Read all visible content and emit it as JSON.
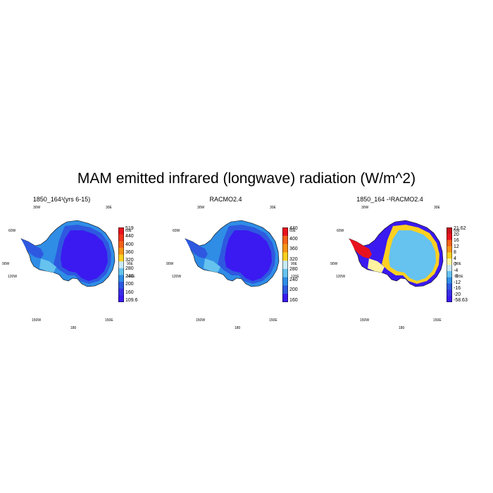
{
  "title": "MAM emitted infrared (longwave) radiation (W/m^2)",
  "panels": [
    {
      "title": "1850_164¹(yrs 6-15)",
      "lon_labels": {
        "top_left": "30W",
        "top_right": "30E",
        "left_upper": "60W",
        "right_upper": "60E",
        "left_mid": "90W",
        "right_mid": "90E",
        "left_lower": "120W",
        "right_lower": "120E",
        "bottom_left": "150W",
        "bottom_right": "150E",
        "bottom": "180"
      },
      "colorbar": {
        "labels": [
          "519",
          "440",
          "400",
          "360",
          "320",
          "280",
          "240",
          "200",
          "160",
          "109.6"
        ],
        "colors": [
          "#e8121e",
          "#f0341c",
          "#f5621a",
          "#f89318",
          "#fdd020",
          "#c8e8f5",
          "#66c2ee",
          "#2f8de6",
          "#2e58e0",
          "#3a2ee6",
          "#3a1af0"
        ]
      },
      "map_colors": {
        "interior": "#3a1af0",
        "coast": "#2e58e0",
        "edge": "#2f8de6",
        "peninsula": "#2e58e0",
        "shelf": "#66c2ee"
      }
    },
    {
      "title": "RACMO2.4",
      "lon_labels": {
        "top_left": "30W",
        "top_right": "30E",
        "left_upper": "60W",
        "right_upper": "60E",
        "left_mid": "90W",
        "right_mid": "90E",
        "left_lower": "120W",
        "right_lower": "120E",
        "bottom_left": "150W",
        "bottom_right": "150E",
        "bottom": "180"
      },
      "colorbar": {
        "labels": [
          "440",
          "400",
          "360",
          "320",
          "280",
          "240",
          "200",
          "160"
        ],
        "colors": [
          "#e8121e",
          "#f5621a",
          "#f89318",
          "#fdd020",
          "#c8e8f5",
          "#66c2ee",
          "#2f8de6",
          "#2e58e0",
          "#3a1af0"
        ]
      },
      "map_colors": {
        "interior": "#3a1af0",
        "coast": "#2e58e0",
        "edge": "#2f8de6",
        "peninsula": "#2e58e0",
        "shelf": "#66c2ee"
      }
    },
    {
      "title": "1850_164 -¹RACMO2.4",
      "lon_labels": {
        "top_left": "30W",
        "top_right": "30E",
        "left_upper": "60W",
        "right_upper": "60E",
        "left_mid": "90W",
        "right_mid": "90E",
        "left_lower": "120W",
        "right_lower": "120E",
        "bottom_left": "150W",
        "bottom_right": "150E",
        "bottom": "180"
      },
      "colorbar": {
        "labels": [
          "21.62",
          "20",
          "16",
          "12",
          "8",
          "4",
          "0",
          "-4",
          "-8",
          "-12",
          "-16",
          "-20",
          "-58.63"
        ],
        "colors": [
          "#c8101c",
          "#e8121e",
          "#f5621a",
          "#f89318",
          "#fdd020",
          "#fff3a0",
          "#c8e8f5",
          "#66c2ee",
          "#2f8de6",
          "#2e58e0",
          "#3a2ee6",
          "#3a1af0"
        ]
      },
      "map_colors": {
        "interior": "#66c2ee",
        "coast": "#fdd020",
        "edge": "#3a1af0",
        "peninsula": "#e8121e",
        "shelf": "#fff3a0"
      }
    }
  ]
}
